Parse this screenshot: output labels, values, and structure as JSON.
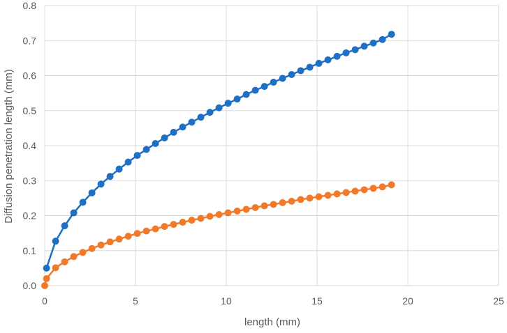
{
  "chart_data": {
    "type": "scatter",
    "title": "",
    "xlabel": "length (mm)",
    "ylabel": "Diffusion penetration length (mm)",
    "xlim": [
      0,
      25
    ],
    "ylim": [
      0,
      0.8
    ],
    "xticks": [
      0,
      5,
      10,
      15,
      20,
      25
    ],
    "yticks": [
      0,
      0.1,
      0.2,
      0.3,
      0.4,
      0.5,
      0.6,
      0.7,
      0.8
    ],
    "xtick_labels": [
      "0",
      "5",
      "10",
      "15",
      "20",
      "25"
    ],
    "ytick_labels": [
      "0.0",
      "0.1",
      "0.2",
      "0.3",
      "0.4",
      "0.5",
      "0.6",
      "0.7",
      "0.8"
    ],
    "grid": true,
    "legend": "none",
    "series": [
      {
        "color": "#1f6fc4",
        "markers": true,
        "line": true,
        "points": [
          [
            0.1,
            0.05
          ],
          [
            0.6,
            0.127
          ],
          [
            1.1,
            0.171
          ],
          [
            1.6,
            0.208
          ],
          [
            2.1,
            0.238
          ],
          [
            2.6,
            0.265
          ],
          [
            3.1,
            0.29
          ],
          [
            3.6,
            0.312
          ],
          [
            4.1,
            0.333
          ],
          [
            4.6,
            0.353
          ],
          [
            5.1,
            0.372
          ],
          [
            5.6,
            0.389
          ],
          [
            6.1,
            0.406
          ],
          [
            6.6,
            0.422
          ],
          [
            7.1,
            0.438
          ],
          [
            7.6,
            0.453
          ],
          [
            8.1,
            0.467
          ],
          [
            8.6,
            0.481
          ],
          [
            9.1,
            0.495
          ],
          [
            9.6,
            0.508
          ],
          [
            10.1,
            0.521
          ],
          [
            10.6,
            0.533
          ],
          [
            11.1,
            0.546
          ],
          [
            11.6,
            0.558
          ],
          [
            12.1,
            0.569
          ],
          [
            12.6,
            0.581
          ],
          [
            13.1,
            0.592
          ],
          [
            13.6,
            0.603
          ],
          [
            14.1,
            0.614
          ],
          [
            14.6,
            0.624
          ],
          [
            15.1,
            0.635
          ],
          [
            15.6,
            0.645
          ],
          [
            16.1,
            0.655
          ],
          [
            16.6,
            0.665
          ],
          [
            17.1,
            0.674
          ],
          [
            17.6,
            0.684
          ],
          [
            18.1,
            0.693
          ],
          [
            18.6,
            0.703
          ],
          [
            19.1,
            0.718
          ]
        ]
      },
      {
        "color": "#f07a2a",
        "markers": true,
        "line": true,
        "points": [
          [
            0,
            0.0
          ],
          [
            0.1,
            0.02
          ],
          [
            0.6,
            0.051
          ],
          [
            1.1,
            0.068
          ],
          [
            1.6,
            0.083
          ],
          [
            2.1,
            0.095
          ],
          [
            2.6,
            0.106
          ],
          [
            3.1,
            0.116
          ],
          [
            3.6,
            0.125
          ],
          [
            4.1,
            0.133
          ],
          [
            4.6,
            0.141
          ],
          [
            5.1,
            0.149
          ],
          [
            5.6,
            0.156
          ],
          [
            6.1,
            0.162
          ],
          [
            6.6,
            0.169
          ],
          [
            7.1,
            0.175
          ],
          [
            7.6,
            0.181
          ],
          [
            8.1,
            0.187
          ],
          [
            8.6,
            0.192
          ],
          [
            9.1,
            0.198
          ],
          [
            9.6,
            0.203
          ],
          [
            10.1,
            0.208
          ],
          [
            10.6,
            0.213
          ],
          [
            11.1,
            0.218
          ],
          [
            11.6,
            0.223
          ],
          [
            12.1,
            0.228
          ],
          [
            12.6,
            0.232
          ],
          [
            13.1,
            0.237
          ],
          [
            13.6,
            0.241
          ],
          [
            14.1,
            0.246
          ],
          [
            14.6,
            0.25
          ],
          [
            15.1,
            0.254
          ],
          [
            15.6,
            0.258
          ],
          [
            16.1,
            0.262
          ],
          [
            16.6,
            0.266
          ],
          [
            17.1,
            0.27
          ],
          [
            17.6,
            0.274
          ],
          [
            18.1,
            0.278
          ],
          [
            18.6,
            0.282
          ],
          [
            19.1,
            0.288
          ]
        ]
      }
    ]
  }
}
